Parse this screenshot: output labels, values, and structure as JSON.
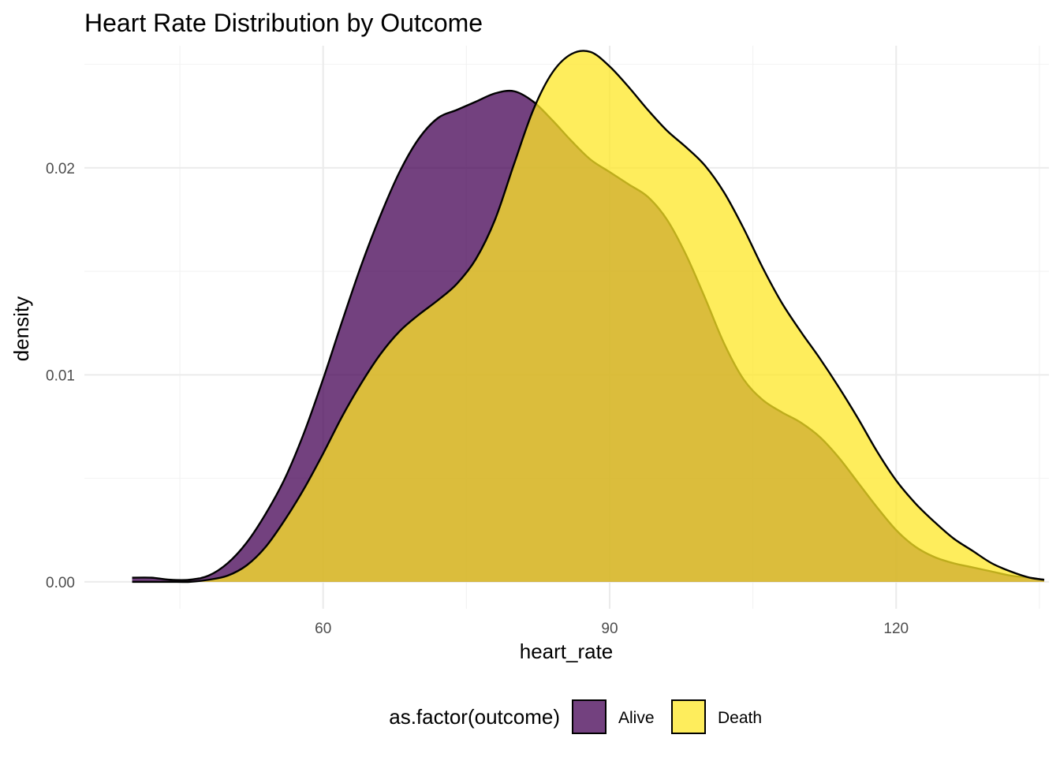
{
  "chart_data": {
    "type": "area",
    "subtype": "density",
    "title": "Heart Rate Distribution by Outcome",
    "xlabel": "heart_rate",
    "ylabel": "density",
    "xlim": [
      35,
      136
    ],
    "ylim": [
      -0.0013,
      0.0259
    ],
    "x_ticks": [
      60,
      90,
      120
    ],
    "x_tick_labels": [
      "60",
      "90",
      "120"
    ],
    "x_minor_ticks": [
      45,
      75,
      105,
      135
    ],
    "y_ticks": [
      0,
      0.01,
      0.02
    ],
    "y_tick_labels": [
      "0.00",
      "0.01",
      "0.02"
    ],
    "y_minor_ticks": [
      0.005,
      0.015,
      0.025
    ],
    "grid": true,
    "legend": {
      "title": "as.factor(outcome)",
      "placement": "bottom",
      "items": [
        {
          "label": "Alive",
          "color": "#440154"
        },
        {
          "label": "Death",
          "color": "#FDE725"
        }
      ]
    },
    "fill_alpha": 0.75,
    "outline_color": "#000000",
    "series": [
      {
        "name": "Alive",
        "color": "#440154",
        "x": [
          40,
          42,
          44,
          46,
          48,
          50,
          52,
          54,
          56,
          58,
          60,
          62,
          64,
          66,
          68,
          70,
          72,
          74,
          76,
          78,
          80,
          82,
          84,
          86,
          88,
          90,
          92,
          94,
          96,
          98,
          100,
          102,
          104,
          106,
          108,
          110,
          112,
          114,
          116,
          118,
          120,
          122,
          124,
          126,
          128,
          130,
          132,
          134,
          135.5
        ],
        "y": [
          0.0002,
          0.0002,
          0.0001,
          0.0001,
          0.0003,
          0.0009,
          0.0019,
          0.0033,
          0.005,
          0.0072,
          0.0098,
          0.0126,
          0.0153,
          0.0177,
          0.0198,
          0.0214,
          0.0224,
          0.0228,
          0.0232,
          0.0236,
          0.0237,
          0.0232,
          0.0223,
          0.0213,
          0.0204,
          0.0198,
          0.0192,
          0.0186,
          0.0175,
          0.0158,
          0.0137,
          0.0115,
          0.0098,
          0.0088,
          0.0082,
          0.0077,
          0.007,
          0.006,
          0.0048,
          0.0036,
          0.0025,
          0.0017,
          0.0012,
          0.0009,
          0.0007,
          0.0005,
          0.0003,
          0.0002,
          0.0001
        ]
      },
      {
        "name": "Death",
        "color": "#FDE725",
        "x": [
          40,
          42,
          44,
          46,
          48,
          50,
          52,
          54,
          56,
          58,
          60,
          62,
          64,
          66,
          68,
          70,
          72,
          74,
          76,
          78,
          80,
          82,
          84,
          86,
          88,
          90,
          92,
          94,
          96,
          98,
          100,
          102,
          104,
          106,
          108,
          110,
          112,
          114,
          116,
          118,
          120,
          122,
          124,
          126,
          128,
          130,
          132,
          134,
          135.5
        ],
        "y": [
          0.0,
          0.0,
          0.0,
          0.0,
          0.0001,
          0.0003,
          0.0008,
          0.0017,
          0.003,
          0.0045,
          0.0062,
          0.008,
          0.0096,
          0.011,
          0.0121,
          0.0129,
          0.0136,
          0.0144,
          0.0156,
          0.0175,
          0.0202,
          0.0228,
          0.0246,
          0.0255,
          0.0256,
          0.0249,
          0.0239,
          0.0228,
          0.0218,
          0.021,
          0.0201,
          0.0188,
          0.0171,
          0.0152,
          0.0135,
          0.0121,
          0.0108,
          0.0094,
          0.0079,
          0.0063,
          0.0049,
          0.0038,
          0.0029,
          0.0021,
          0.0015,
          0.0009,
          0.0005,
          0.0002,
          0.0001
        ]
      }
    ]
  }
}
